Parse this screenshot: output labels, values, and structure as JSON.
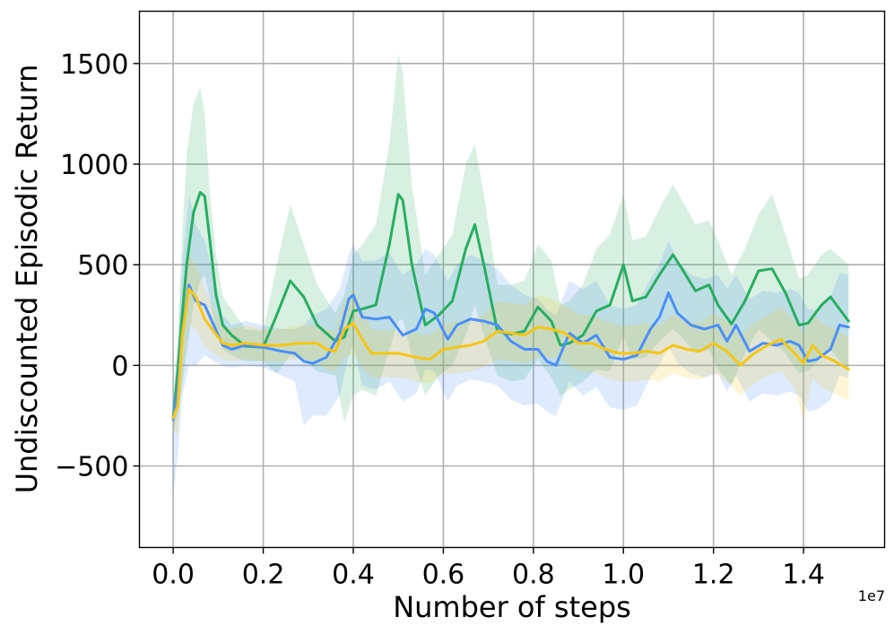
{
  "chart_data": {
    "type": "line",
    "xlabel": "Number of steps",
    "ylabel": "Undiscounted Episodic Return",
    "x_offset_label": "1e7",
    "x_ticks": [
      "0.0",
      "0.2",
      "0.4",
      "0.6",
      "0.8",
      "1.0",
      "1.2",
      "1.4"
    ],
    "y_ticks": [
      "−500",
      "0",
      "500",
      "1000",
      "1500"
    ],
    "x_tick_values": [
      0.0,
      0.2,
      0.4,
      0.6,
      0.8,
      1.0,
      1.2,
      1.4
    ],
    "y_tick_values": [
      -500,
      0,
      500,
      1000,
      1500
    ],
    "xlim": [
      -0.075,
      1.58
    ],
    "ylim": [
      -905,
      1760
    ],
    "grid": true,
    "x_unit_multiplier": 10000000,
    "series": [
      {
        "color": "#27ae60",
        "band_color": "#27ae60",
        "x": [
          0.0,
          0.01,
          0.02,
          0.03,
          0.045,
          0.06,
          0.07,
          0.08,
          0.095,
          0.11,
          0.13,
          0.16,
          0.2,
          0.23,
          0.26,
          0.29,
          0.32,
          0.36,
          0.38,
          0.4,
          0.42,
          0.45,
          0.48,
          0.5,
          0.51,
          0.53,
          0.56,
          0.59,
          0.62,
          0.65,
          0.67,
          0.69,
          0.72,
          0.75,
          0.78,
          0.81,
          0.84,
          0.86,
          0.88,
          0.91,
          0.94,
          0.97,
          1.0,
          1.02,
          1.05,
          1.08,
          1.11,
          1.13,
          1.16,
          1.19,
          1.21,
          1.24,
          1.27,
          1.3,
          1.33,
          1.36,
          1.39,
          1.41,
          1.44,
          1.46,
          1.5
        ],
        "y": [
          -260,
          -30,
          250,
          500,
          760,
          860,
          840,
          650,
          350,
          200,
          150,
          95,
          90,
          250,
          420,
          340,
          200,
          120,
          140,
          270,
          280,
          300,
          600,
          850,
          820,
          500,
          200,
          250,
          320,
          580,
          700,
          500,
          170,
          155,
          170,
          290,
          220,
          100,
          110,
          150,
          270,
          300,
          500,
          320,
          340,
          450,
          550,
          480,
          370,
          400,
          300,
          205,
          320,
          470,
          480,
          360,
          200,
          210,
          300,
          340,
          220
        ],
        "upper": [
          -200,
          150,
          650,
          1050,
          1300,
          1380,
          1250,
          900,
          550,
          340,
          280,
          180,
          170,
          500,
          800,
          600,
          400,
          260,
          350,
          550,
          600,
          700,
          1100,
          1550,
          1450,
          900,
          450,
          550,
          650,
          1000,
          1100,
          850,
          400,
          400,
          420,
          600,
          520,
          300,
          320,
          400,
          580,
          650,
          850,
          620,
          640,
          780,
          900,
          820,
          700,
          720,
          620,
          450,
          580,
          750,
          850,
          650,
          430,
          450,
          550,
          580,
          500
        ],
        "lower": [
          -330,
          -250,
          -100,
          60,
          300,
          420,
          450,
          350,
          170,
          80,
          50,
          20,
          20,
          -40,
          50,
          30,
          -30,
          -50,
          -280,
          -150,
          -120,
          -150,
          80,
          220,
          230,
          50,
          -150,
          -50,
          0,
          150,
          300,
          150,
          -50,
          -80,
          -70,
          30,
          -60,
          -150,
          -120,
          -80,
          -20,
          -30,
          150,
          30,
          40,
          120,
          180,
          140,
          60,
          80,
          -20,
          -100,
          60,
          180,
          120,
          60,
          -40,
          -30,
          40,
          80,
          -30
        ]
      },
      {
        "color": "#4a8ff7",
        "band_color": "#4a8ff7",
        "x": [
          0.0,
          0.01,
          0.02,
          0.035,
          0.05,
          0.07,
          0.09,
          0.11,
          0.13,
          0.16,
          0.2,
          0.24,
          0.27,
          0.29,
          0.31,
          0.34,
          0.37,
          0.39,
          0.4,
          0.42,
          0.45,
          0.48,
          0.51,
          0.54,
          0.56,
          0.58,
          0.61,
          0.63,
          0.66,
          0.69,
          0.72,
          0.75,
          0.78,
          0.81,
          0.83,
          0.85,
          0.88,
          0.91,
          0.94,
          0.97,
          1.0,
          1.03,
          1.06,
          1.08,
          1.1,
          1.12,
          1.15,
          1.18,
          1.21,
          1.23,
          1.25,
          1.28,
          1.31,
          1.34,
          1.37,
          1.39,
          1.41,
          1.43,
          1.46,
          1.48,
          1.5
        ],
        "y": [
          -270,
          -120,
          150,
          400,
          320,
          300,
          200,
          100,
          80,
          100,
          90,
          70,
          60,
          20,
          10,
          40,
          160,
          330,
          350,
          240,
          230,
          240,
          150,
          180,
          280,
          260,
          130,
          200,
          230,
          220,
          200,
          120,
          80,
          80,
          20,
          0,
          160,
          110,
          150,
          40,
          30,
          50,
          180,
          240,
          360,
          260,
          200,
          180,
          200,
          120,
          200,
          70,
          110,
          100,
          120,
          100,
          20,
          30,
          80,
          200,
          190
        ],
        "upper": [
          -200,
          100,
          500,
          850,
          700,
          620,
          450,
          250,
          200,
          220,
          200,
          180,
          180,
          200,
          250,
          280,
          380,
          550,
          600,
          520,
          520,
          560,
          450,
          500,
          580,
          550,
          420,
          500,
          550,
          520,
          480,
          400,
          350,
          330,
          280,
          250,
          420,
          380,
          420,
          300,
          280,
          300,
          430,
          500,
          620,
          520,
          450,
          430,
          450,
          380,
          450,
          330,
          370,
          360,
          380,
          360,
          280,
          280,
          340,
          460,
          450
        ],
        "lower": [
          -650,
          -450,
          -150,
          0,
          0,
          50,
          20,
          0,
          -10,
          0,
          -10,
          -50,
          -80,
          -300,
          -250,
          -250,
          -150,
          50,
          100,
          -100,
          -120,
          -80,
          -180,
          -140,
          -20,
          -30,
          -180,
          -100,
          -70,
          -80,
          -100,
          -170,
          -200,
          -190,
          -230,
          -250,
          -80,
          -150,
          -110,
          -210,
          -220,
          -200,
          -60,
          0,
          100,
          10,
          -40,
          -60,
          -40,
          -130,
          -50,
          -180,
          -140,
          -150,
          -130,
          -150,
          -230,
          -220,
          -170,
          -50,
          -60
        ]
      },
      {
        "color": "#f5c518",
        "band_color": "#f5c518",
        "x": [
          0.0,
          0.01,
          0.02,
          0.035,
          0.05,
          0.07,
          0.09,
          0.11,
          0.13,
          0.16,
          0.2,
          0.24,
          0.28,
          0.32,
          0.34,
          0.36,
          0.38,
          0.4,
          0.42,
          0.44,
          0.47,
          0.5,
          0.54,
          0.57,
          0.6,
          0.63,
          0.66,
          0.69,
          0.72,
          0.75,
          0.78,
          0.81,
          0.84,
          0.87,
          0.9,
          0.93,
          0.96,
          0.99,
          1.02,
          1.05,
          1.08,
          1.11,
          1.14,
          1.17,
          1.2,
          1.23,
          1.26,
          1.29,
          1.32,
          1.35,
          1.38,
          1.4,
          1.42,
          1.44,
          1.47,
          1.5
        ],
        "y": [
          -260,
          -200,
          150,
          380,
          340,
          230,
          170,
          110,
          100,
          110,
          100,
          100,
          110,
          110,
          80,
          70,
          180,
          210,
          130,
          60,
          60,
          60,
          40,
          30,
          80,
          90,
          100,
          120,
          170,
          160,
          150,
          190,
          180,
          160,
          110,
          110,
          80,
          60,
          60,
          70,
          60,
          100,
          80,
          70,
          110,
          70,
          0,
          60,
          100,
          130,
          60,
          10,
          100,
          50,
          20,
          -20
        ],
        "upper": [
          -200,
          0,
          350,
          550,
          500,
          380,
          280,
          200,
          180,
          200,
          180,
          180,
          200,
          200,
          180,
          170,
          320,
          380,
          280,
          180,
          170,
          180,
          160,
          150,
          200,
          220,
          230,
          250,
          320,
          310,
          300,
          350,
          330,
          300,
          250,
          250,
          220,
          200,
          200,
          210,
          200,
          250,
          220,
          210,
          260,
          220,
          150,
          210,
          250,
          290,
          220,
          160,
          260,
          210,
          180,
          140
        ],
        "lower": [
          -320,
          -350,
          -50,
          200,
          180,
          90,
          60,
          30,
          20,
          30,
          20,
          20,
          30,
          20,
          -20,
          -30,
          40,
          60,
          -10,
          -60,
          -60,
          -60,
          -80,
          -90,
          -40,
          -40,
          -30,
          -10,
          30,
          20,
          10,
          40,
          40,
          20,
          -30,
          -30,
          -60,
          -80,
          -80,
          -70,
          -80,
          -40,
          -60,
          -70,
          -40,
          -80,
          -150,
          -90,
          -50,
          -30,
          -110,
          -270,
          -60,
          -110,
          -140,
          -180
        ]
      }
    ]
  }
}
